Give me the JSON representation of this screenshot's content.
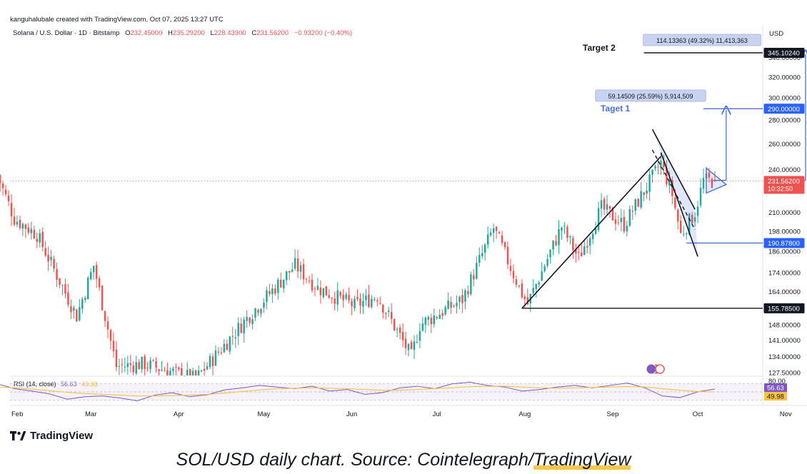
{
  "header": {
    "credit": "kanguhalubale created with TradingView.com, Oct 07, 2025 13:27 UTC",
    "symbol": "Solana / U.S. Dollar · 1D · Bitstamp",
    "ohlc": {
      "o_label": "O",
      "o": "232.45000",
      "h_label": "H",
      "h": "235.29200",
      "l_label": "L",
      "l": "228.43900",
      "c_label": "C",
      "c": "231.56200",
      "change": "−0.93200 (−0.40%)"
    },
    "currency": "USD"
  },
  "caption": {
    "prefix": "SOL/USD daily chart. Source: Cointelegraph/",
    "highlight": "TradingView"
  },
  "logo": {
    "text": "TradingView",
    "icon": "tradingview-logo-icon"
  },
  "colors": {
    "up": "#26a69a",
    "down": "#ef5350",
    "drawing": "#4a72d8",
    "rsi": "#7e57c2",
    "rsi_ma": "#f5c342"
  },
  "chart_data": [
    {
      "type": "candlestick",
      "title": "",
      "ylim": [
        127.5,
        350
      ],
      "y_scale": "log",
      "y_ticks": [
        "340.00000",
        "320.00000",
        "300.00000",
        "280.00000",
        "260.00000",
        "240.00000",
        "210.00000",
        "198.00000",
        "186.00000",
        "174.00000",
        "164.00000",
        "148.00000",
        "141.00000",
        "134.00000",
        "127.50000"
      ],
      "x_ticks": [
        "Feb",
        "Mar",
        "Apr",
        "May",
        "Jun",
        "Jul",
        "Aug",
        "Sep",
        "Oct",
        "Nov"
      ],
      "price_labels": [
        {
          "value": 345.1024,
          "text": "345.10240",
          "style": "black"
        },
        {
          "value": 290.0,
          "text": "290.00000",
          "style": "blue"
        },
        {
          "value": 231.562,
          "text": "231.56200",
          "sub": "10:32:50",
          "style": "red"
        },
        {
          "value": 190.878,
          "text": "190.87800",
          "style": "blue"
        },
        {
          "value": 155.785,
          "text": "155.78500",
          "style": "black"
        }
      ],
      "annotations": {
        "target2_label": "Target 2",
        "target1_label": "Taget 1",
        "measure1": "59.14509 (25.59%) 5,914,509",
        "measure2": "114.13363 (49.32%) 11,413,363"
      },
      "anchors": [
        {
          "date": "2025-01-27",
          "price": 236
        },
        {
          "date": "2025-02-02",
          "price": 206
        },
        {
          "date": "2025-02-10",
          "price": 196
        },
        {
          "date": "2025-02-24",
          "price": 152
        },
        {
          "date": "2025-03-02",
          "price": 178
        },
        {
          "date": "2025-03-10",
          "price": 130
        },
        {
          "date": "2025-03-20",
          "price": 131
        },
        {
          "date": "2025-04-07",
          "price": 125
        },
        {
          "date": "2025-04-25",
          "price": 151
        },
        {
          "date": "2025-05-12",
          "price": 178
        },
        {
          "date": "2025-05-20",
          "price": 166
        },
        {
          "date": "2025-06-02",
          "price": 157
        },
        {
          "date": "2025-06-10",
          "price": 162
        },
        {
          "date": "2025-06-22",
          "price": 134
        },
        {
          "date": "2025-06-25",
          "price": 148
        },
        {
          "date": "2025-07-10",
          "price": 160
        },
        {
          "date": "2025-07-21",
          "price": 200
        },
        {
          "date": "2025-07-31",
          "price": 163
        },
        {
          "date": "2025-08-02",
          "price": 158
        },
        {
          "date": "2025-08-14",
          "price": 201
        },
        {
          "date": "2025-08-20",
          "price": 182
        },
        {
          "date": "2025-08-28",
          "price": 213
        },
        {
          "date": "2025-09-05",
          "price": 202
        },
        {
          "date": "2025-09-18",
          "price": 245
        },
        {
          "date": "2025-09-22",
          "price": 222
        },
        {
          "date": "2025-09-25",
          "price": 196
        },
        {
          "date": "2025-09-30",
          "price": 210
        },
        {
          "date": "2025-10-03",
          "price": 232
        },
        {
          "date": "2025-10-07",
          "price": 231.5
        }
      ],
      "drawings": {
        "target2": {
          "from": "2025-09-12",
          "to": "2025-11-25",
          "price": 345.1024
        },
        "target1": {
          "from": "2025-10-03",
          "to": "2025-11-25",
          "price": 290
        },
        "support_mid": {
          "from": "2025-09-27",
          "to": "2025-11-25",
          "price": 190.878
        },
        "support_low": {
          "from": "2025-07-31",
          "to": "2025-11-25",
          "price": 155.785
        },
        "pole": [
          {
            "date": "2025-07-31",
            "price": 155.785
          },
          {
            "date": "2025-09-18",
            "price": 250
          }
        ],
        "flag_upper": [
          {
            "date": "2025-09-15",
            "price": 272
          },
          {
            "date": "2025-09-30",
            "price": 212
          }
        ],
        "flag_lower": [
          {
            "date": "2025-09-18",
            "price": 253
          },
          {
            "date": "2025-10-01",
            "price": 183
          }
        ],
        "flag_dash": [
          {
            "date": "2025-09-15",
            "price": 255
          },
          {
            "date": "2025-09-30",
            "price": 199
          }
        ],
        "pennant": [
          {
            "date": "2025-10-04",
            "price": 241
          },
          {
            "date": "2025-10-11",
            "price": 229
          },
          {
            "date": "2025-10-04",
            "price": 223
          }
        ],
        "arrow1": {
          "date": "2025-10-11",
          "from": 232,
          "to": 290
        },
        "arrow2": {
          "date": "2025-11-08",
          "from": 232,
          "to": 345.1024
        }
      }
    },
    {
      "type": "line",
      "title": "RSI (14, close)",
      "series": [
        {
          "name": "RSI",
          "value_text": "56.63",
          "values": [
            70,
            58,
            52,
            45,
            32,
            38,
            40,
            35,
            28,
            42,
            48,
            38,
            43,
            55,
            60,
            66,
            62,
            58,
            64,
            52,
            56,
            44,
            48,
            60,
            64,
            58,
            70,
            74,
            66,
            62,
            52,
            56,
            62,
            66,
            60,
            66,
            72,
            60,
            40,
            36,
            50,
            57
          ]
        },
        {
          "name": "RSI-based MA",
          "value_text": "49.98",
          "values": [
            62,
            60,
            57,
            53,
            49,
            46,
            44,
            42,
            40,
            40,
            41,
            42,
            44,
            47,
            51,
            55,
            58,
            59,
            60,
            59,
            58,
            56,
            54,
            54,
            56,
            58,
            60,
            63,
            64,
            64,
            62,
            60,
            59,
            60,
            61,
            62,
            63,
            62,
            58,
            54,
            51,
            50
          ]
        }
      ],
      "start": "2025-01-27",
      "end": "2025-10-07",
      "ylim": [
        20,
        80
      ],
      "top_tick": "80.00"
    }
  ]
}
